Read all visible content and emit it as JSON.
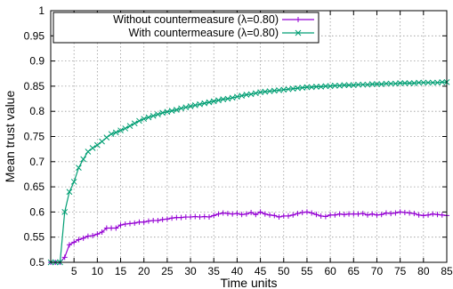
{
  "chart_data": {
    "type": "line",
    "xlabel": "Time units",
    "ylabel": "Mean trust value",
    "xlim": [
      0,
      85
    ],
    "ylim": [
      0.5,
      1.0
    ],
    "x_ticks": [
      5,
      10,
      15,
      20,
      25,
      30,
      35,
      40,
      45,
      50,
      55,
      60,
      65,
      70,
      75,
      80,
      85
    ],
    "y_ticks": [
      0.5,
      0.55,
      0.6,
      0.65,
      0.7,
      0.75,
      0.8,
      0.85,
      0.9,
      0.95,
      1
    ],
    "y_tick_labels": [
      "0.5",
      "0.55",
      "0.6",
      "0.65",
      "0.7",
      "0.75",
      "0.8",
      "0.85",
      "0.9",
      "0.95",
      "1"
    ],
    "grid": true,
    "legend_position": "top-left",
    "x": [
      0,
      1,
      2,
      3,
      4,
      5,
      6,
      7,
      8,
      9,
      10,
      11,
      12,
      13,
      14,
      15,
      16,
      17,
      18,
      19,
      20,
      21,
      22,
      23,
      24,
      25,
      26,
      27,
      28,
      29,
      30,
      31,
      32,
      33,
      34,
      35,
      36,
      37,
      38,
      39,
      40,
      41,
      42,
      43,
      44,
      45,
      46,
      47,
      48,
      49,
      50,
      51,
      52,
      53,
      54,
      55,
      56,
      57,
      58,
      59,
      60,
      61,
      62,
      63,
      64,
      65,
      66,
      67,
      68,
      69,
      70,
      71,
      72,
      73,
      74,
      75,
      76,
      77,
      78,
      79,
      80,
      81,
      82,
      83,
      84,
      85
    ],
    "series": [
      {
        "name": "Without countermeasure (λ=0.80)",
        "color": "#9400d3",
        "marker": "plus",
        "values": [
          0.5,
          0.5,
          0.5,
          0.51,
          0.535,
          0.54,
          0.545,
          0.548,
          0.552,
          0.553,
          0.556,
          0.56,
          0.568,
          0.568,
          0.568,
          0.574,
          0.576,
          0.577,
          0.578,
          0.58,
          0.58,
          0.582,
          0.583,
          0.583,
          0.585,
          0.586,
          0.588,
          0.589,
          0.589,
          0.59,
          0.59,
          0.591,
          0.59,
          0.591,
          0.59,
          0.593,
          0.596,
          0.598,
          0.597,
          0.596,
          0.597,
          0.595,
          0.596,
          0.599,
          0.595,
          0.6,
          0.596,
          0.594,
          0.593,
          0.59,
          0.592,
          0.592,
          0.594,
          0.597,
          0.599,
          0.6,
          0.598,
          0.595,
          0.592,
          0.591,
          0.594,
          0.594,
          0.596,
          0.595,
          0.596,
          0.596,
          0.596,
          0.597,
          0.594,
          0.596,
          0.594,
          0.595,
          0.598,
          0.597,
          0.598,
          0.6,
          0.599,
          0.598,
          0.597,
          0.594,
          0.593,
          0.594,
          0.596,
          0.595,
          0.594,
          0.593
        ]
      },
      {
        "name": "With countermeasure (λ=0.80)",
        "color": "#009e73",
        "marker": "cross",
        "values": [
          0.5,
          0.5,
          0.5,
          0.6,
          0.64,
          0.66,
          0.688,
          0.705,
          0.72,
          0.727,
          0.733,
          0.74,
          0.748,
          0.755,
          0.758,
          0.762,
          0.766,
          0.771,
          0.776,
          0.781,
          0.785,
          0.788,
          0.791,
          0.794,
          0.797,
          0.799,
          0.801,
          0.803,
          0.806,
          0.808,
          0.81,
          0.812,
          0.814,
          0.816,
          0.818,
          0.82,
          0.822,
          0.824,
          0.825,
          0.827,
          0.829,
          0.831,
          0.833,
          0.834,
          0.836,
          0.838,
          0.839,
          0.84,
          0.841,
          0.842,
          0.843,
          0.844,
          0.845,
          0.846,
          0.847,
          0.848,
          0.848,
          0.849,
          0.849,
          0.85,
          0.85,
          0.851,
          0.851,
          0.852,
          0.852,
          0.852,
          0.853,
          0.853,
          0.853,
          0.854,
          0.854,
          0.854,
          0.855,
          0.855,
          0.855,
          0.856,
          0.856,
          0.856,
          0.856,
          0.857,
          0.857,
          0.857,
          0.857,
          0.857,
          0.858,
          0.858
        ]
      }
    ]
  }
}
